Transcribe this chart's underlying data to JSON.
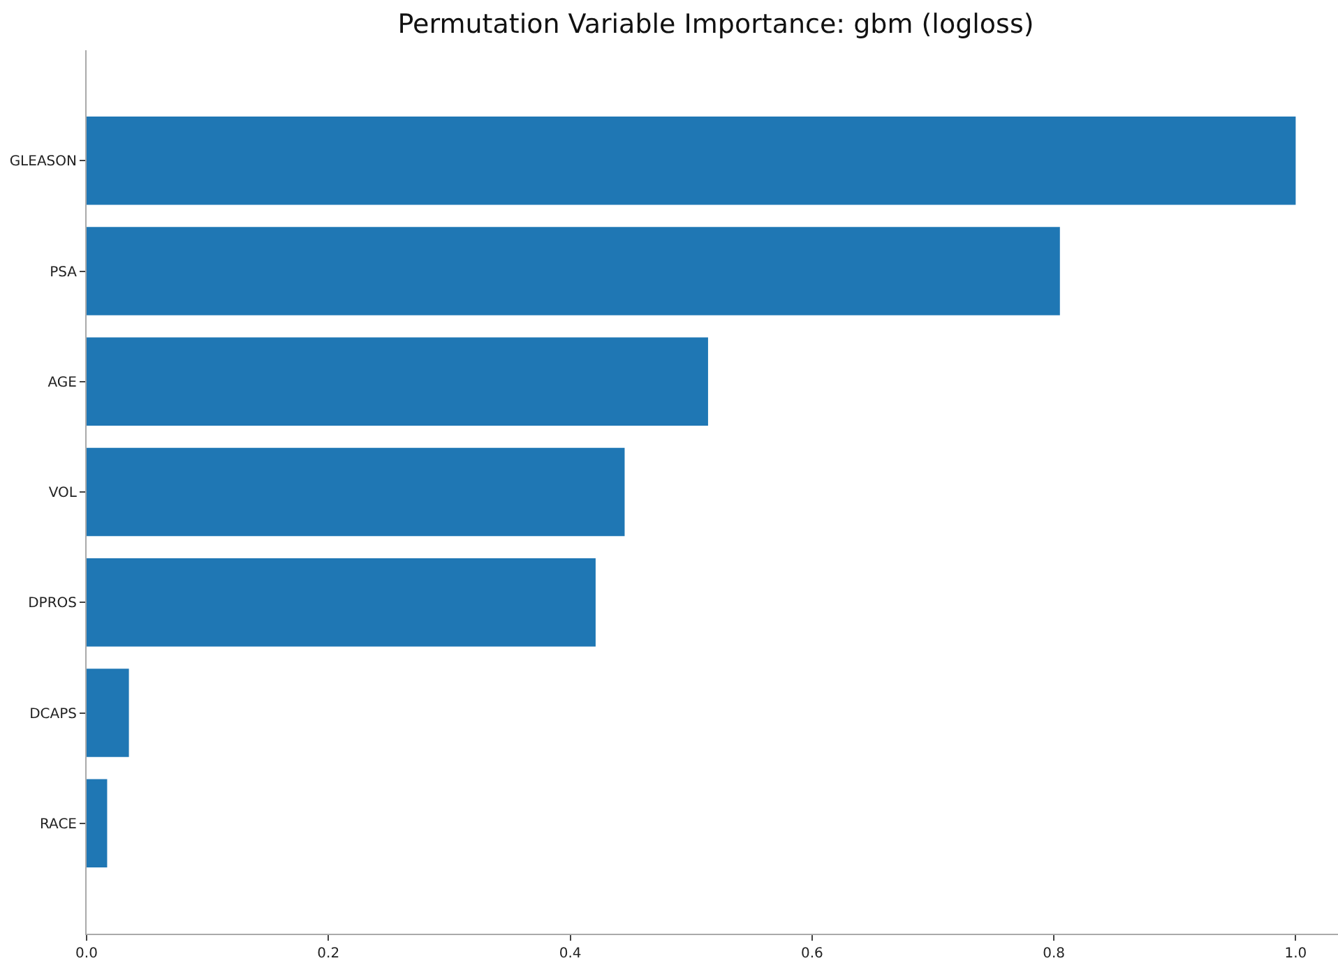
{
  "chart_data": {
    "type": "bar",
    "orientation": "horizontal",
    "title": "Permutation Variable Importance: gbm (logloss)",
    "categories": [
      "GLEASON",
      "PSA",
      "AGE",
      "VOL",
      "DPROS",
      "DCAPS",
      "RACE"
    ],
    "values": [
      1.0,
      0.805,
      0.514,
      0.445,
      0.421,
      0.035,
      0.017
    ],
    "color": "#1f77b4",
    "xlim": [
      0,
      1.035
    ],
    "xticks": [
      {
        "value": 0,
        "label": "0.0"
      },
      0.2,
      0.4,
      0.6,
      0.8,
      {
        "value": 1,
        "label": "1.0"
      }
    ],
    "grid": false,
    "legend": false
  }
}
